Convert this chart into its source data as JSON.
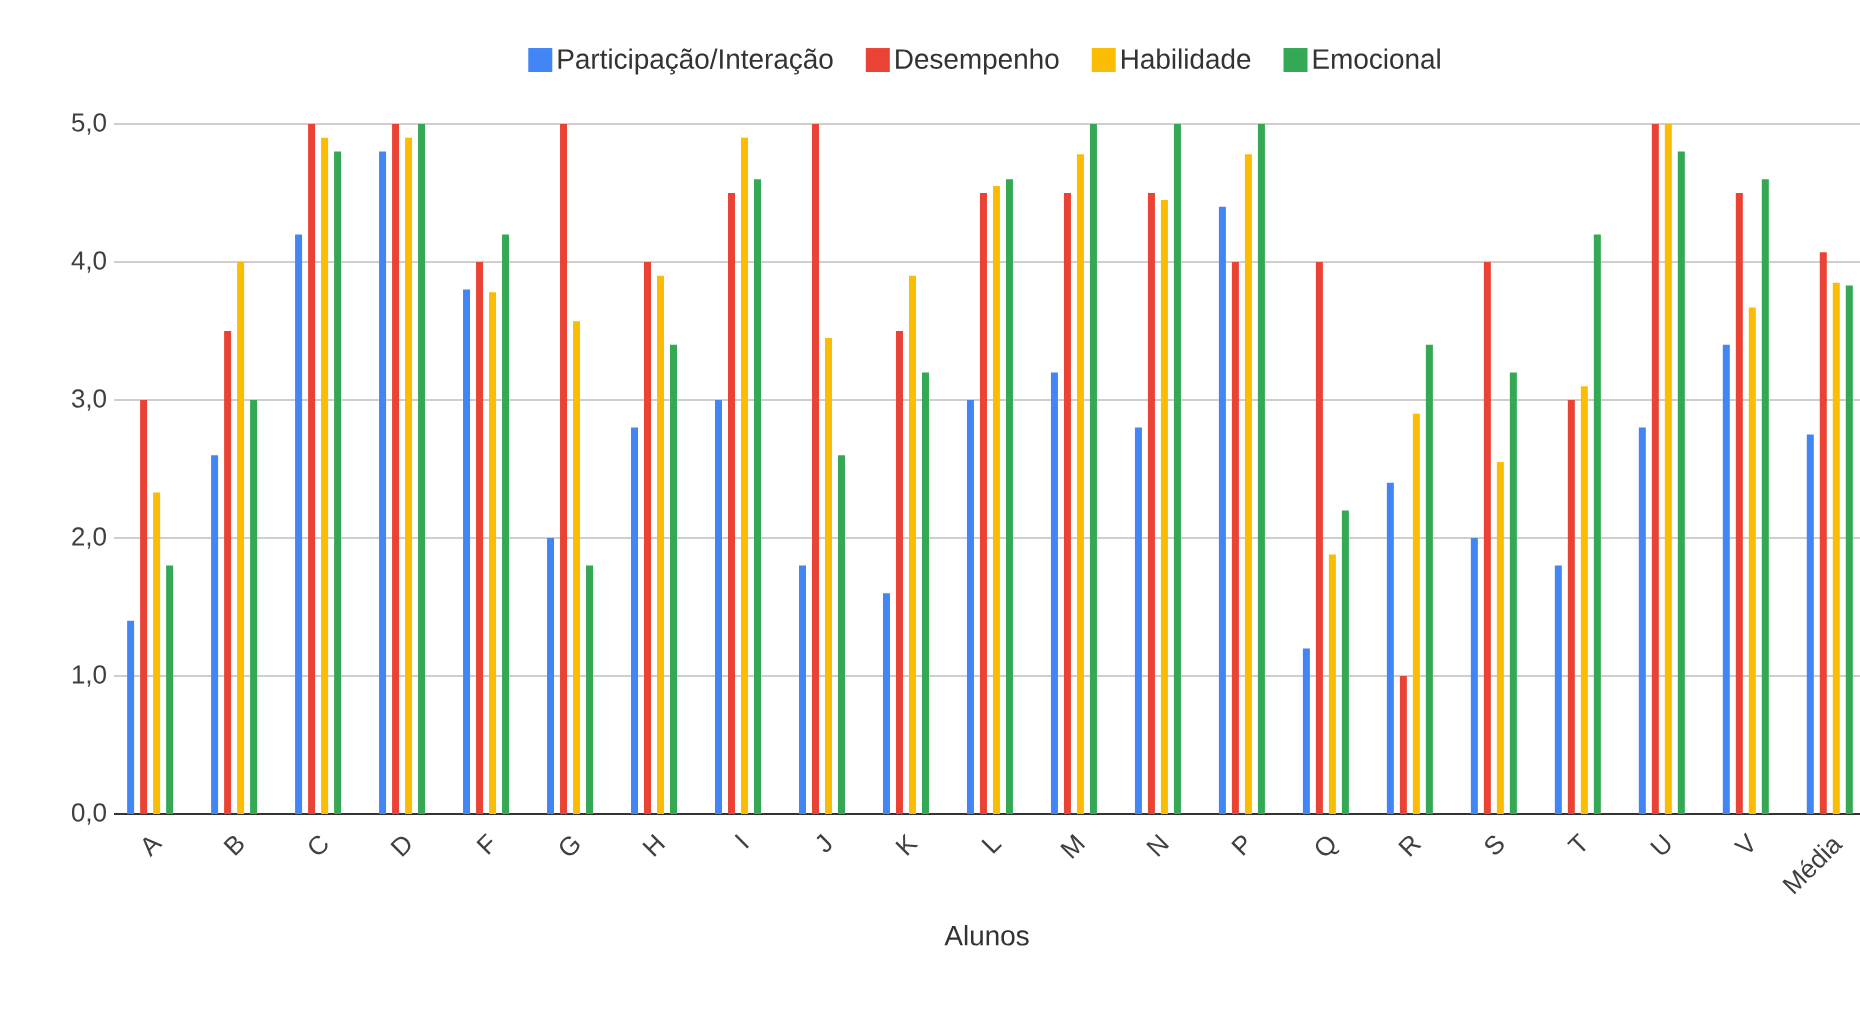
{
  "chart_data": {
    "type": "bar",
    "xlabel": "Alunos",
    "categories": [
      "A",
      "B",
      "C",
      "D",
      "F",
      "G",
      "H",
      "I",
      "J",
      "K",
      "L",
      "M",
      "N",
      "P",
      "Q",
      "R",
      "S",
      "T",
      "U",
      "V",
      "Média"
    ],
    "series": [
      {
        "name": "Participação/Interação",
        "color": "#4285f4",
        "values": [
          1.4,
          2.6,
          4.2,
          4.8,
          3.8,
          2.0,
          2.8,
          3.0,
          1.8,
          1.6,
          3.0,
          3.2,
          2.8,
          4.4,
          1.2,
          2.4,
          2.0,
          1.8,
          2.8,
          3.4,
          2.75
        ]
      },
      {
        "name": "Desempenho",
        "color": "#ea4335",
        "values": [
          3.0,
          3.5,
          5.0,
          5.0,
          4.0,
          5.0,
          4.0,
          4.5,
          5.0,
          3.5,
          4.5,
          4.5,
          4.5,
          4.0,
          4.0,
          1.0,
          4.0,
          3.0,
          5.0,
          4.5,
          4.07
        ]
      },
      {
        "name": "Habilidade",
        "color": "#fbbc04",
        "values": [
          2.33,
          4.0,
          4.9,
          4.9,
          3.78,
          3.57,
          3.9,
          4.9,
          3.45,
          3.9,
          4.55,
          4.78,
          4.45,
          4.78,
          1.88,
          2.9,
          2.55,
          3.1,
          5.0,
          3.67,
          3.85
        ]
      },
      {
        "name": "Emocional",
        "color": "#34a853",
        "values": [
          1.8,
          3.0,
          4.8,
          5.0,
          4.2,
          1.8,
          3.4,
          4.6,
          2.6,
          3.2,
          4.6,
          5.0,
          5.0,
          5.0,
          2.2,
          3.4,
          3.2,
          4.2,
          4.8,
          4.6,
          3.83
        ]
      }
    ],
    "ylim": [
      0,
      5
    ],
    "yticks": [
      {
        "value": 0,
        "label": "0,0"
      },
      {
        "value": 1,
        "label": "1,0"
      },
      {
        "value": 2,
        "label": "2,0"
      },
      {
        "value": 3,
        "label": "3,0"
      },
      {
        "value": 4,
        "label": "4,0"
      },
      {
        "value": 5,
        "label": "5,0"
      }
    ],
    "grid": "y",
    "legend": "top"
  }
}
